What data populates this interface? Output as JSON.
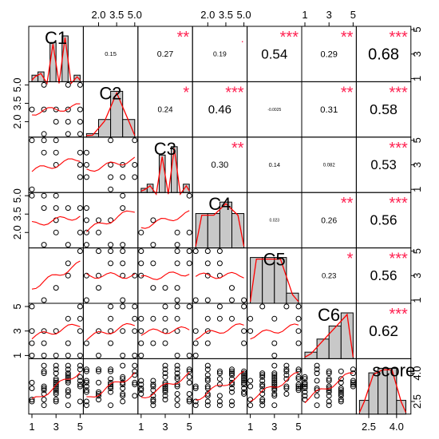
{
  "chart_data": {
    "type": "scatter",
    "title": "",
    "variables": [
      "C1",
      "C2",
      "C3",
      "C4",
      "C5",
      "C6",
      "score"
    ],
    "correlation_matrix": [
      {
        "row": "C1",
        "col": "C2",
        "r": "0.15",
        "stars": ""
      },
      {
        "row": "C1",
        "col": "C3",
        "r": "0.27",
        "stars": "**"
      },
      {
        "row": "C1",
        "col": "C4",
        "r": "0.19",
        "stars": "."
      },
      {
        "row": "C1",
        "col": "C5",
        "r": "0.54",
        "stars": "***"
      },
      {
        "row": "C1",
        "col": "C6",
        "r": "0.29",
        "stars": "**"
      },
      {
        "row": "C1",
        "col": "score",
        "r": "0.68",
        "stars": "***"
      },
      {
        "row": "C2",
        "col": "C3",
        "r": "0.24",
        "stars": "*"
      },
      {
        "row": "C2",
        "col": "C4",
        "r": "0.46",
        "stars": "***"
      },
      {
        "row": "C2",
        "col": "C5",
        "r": "-0.0025",
        "stars": ""
      },
      {
        "row": "C2",
        "col": "C6",
        "r": "0.31",
        "stars": "**"
      },
      {
        "row": "C2",
        "col": "score",
        "r": "0.58",
        "stars": "***"
      },
      {
        "row": "C3",
        "col": "C4",
        "r": "0.30",
        "stars": "**"
      },
      {
        "row": "C3",
        "col": "C5",
        "r": "0.14",
        "stars": ""
      },
      {
        "row": "C3",
        "col": "C6",
        "r": "0.082",
        "stars": ""
      },
      {
        "row": "C3",
        "col": "score",
        "r": "0.53",
        "stars": "***"
      },
      {
        "row": "C4",
        "col": "C5",
        "r": "0.023",
        "stars": ""
      },
      {
        "row": "C4",
        "col": "C6",
        "r": "0.26",
        "stars": "**"
      },
      {
        "row": "C4",
        "col": "score",
        "r": "0.56",
        "stars": "***"
      },
      {
        "row": "C5",
        "col": "C6",
        "r": "0.23",
        "stars": "*"
      },
      {
        "row": "C5",
        "col": "score",
        "r": "0.56",
        "stars": "***"
      },
      {
        "row": "C6",
        "col": "score",
        "r": "0.62",
        "stars": "***"
      }
    ],
    "histograms": [
      {
        "variable": "C1",
        "bins": [
          1,
          1.5,
          2,
          2.5,
          3,
          3.5,
          4,
          4.5,
          5
        ],
        "counts": [
          2,
          3,
          0,
          12,
          0,
          14,
          0,
          2
        ]
      },
      {
        "variable": "C2",
        "bins": [
          1,
          2,
          3,
          4,
          5
        ],
        "counts": [
          1,
          5,
          13,
          5
        ]
      },
      {
        "variable": "C3",
        "bins": [
          1,
          1.5,
          2,
          2.5,
          3,
          3.5,
          4,
          4.5,
          5
        ],
        "counts": [
          1,
          2,
          0,
          9,
          0,
          11,
          0,
          2
        ]
      },
      {
        "variable": "C4",
        "bins": [
          1,
          2,
          3,
          4,
          5
        ],
        "counts": [
          6,
          6,
          8,
          6
        ]
      },
      {
        "variable": "C5",
        "bins": [
          1,
          2,
          3,
          4,
          5
        ],
        "counts": [
          9,
          9,
          9,
          2
        ]
      },
      {
        "variable": "C6",
        "bins": [
          1,
          2,
          3,
          4,
          5
        ],
        "counts": [
          1,
          3,
          5,
          7
        ]
      },
      {
        "variable": "score",
        "bins": [
          2.0,
          2.5,
          3.0,
          3.5,
          4.0,
          4.5
        ],
        "counts": [
          3,
          9,
          10,
          10,
          3
        ]
      }
    ],
    "axes": {
      "top": [
        {
          "column": "C2",
          "ticks": [
            "2.0",
            "3.5",
            "5.0"
          ]
        },
        {
          "column": "C4",
          "ticks": [
            "2.0",
            "3.5",
            "5.0"
          ]
        },
        {
          "column": "C6",
          "ticks": [
            "1",
            "3",
            "5"
          ]
        }
      ],
      "bottom": [
        {
          "column": "C1",
          "ticks": [
            "1",
            "3",
            "5"
          ]
        },
        {
          "column": "C3",
          "ticks": [
            "1",
            "3",
            "5"
          ]
        },
        {
          "column": "C5",
          "ticks": [
            "1",
            "3",
            "5"
          ]
        },
        {
          "column": "score",
          "ticks": [
            "2.5",
            "4.0"
          ]
        }
      ],
      "left": [
        {
          "row": "C2",
          "ticks": [
            "2.0",
            "3.5",
            "5.0"
          ]
        },
        {
          "row": "C4",
          "ticks": [
            "2.0",
            "3.5",
            "5.0"
          ]
        },
        {
          "row": "C6",
          "ticks": [
            "1",
            "3",
            "5"
          ]
        }
      ],
      "right": [
        {
          "row": "C1",
          "ticks": [
            "1",
            "3",
            "5"
          ]
        },
        {
          "row": "C3",
          "ticks": [
            "1",
            "3",
            "5"
          ]
        },
        {
          "row": "C5",
          "ticks": [
            "1",
            "3",
            "5"
          ]
        },
        {
          "row": "score",
          "ticks": [
            "2.5",
            "4.0"
          ]
        }
      ]
    },
    "ranges": {
      "C1": [
        1,
        5
      ],
      "C2": [
        1,
        5
      ],
      "C3": [
        1,
        5
      ],
      "C4": [
        1,
        5
      ],
      "C5": [
        1,
        5
      ],
      "C6": [
        1,
        5
      ],
      "score": [
        2.0,
        4.6
      ]
    },
    "level_values": [
      1,
      2,
      3,
      4,
      5
    ],
    "score_values": [
      2.3,
      2.5,
      2.6,
      2.8,
      2.9,
      3.0,
      3.1,
      3.2,
      3.3,
      3.4,
      3.5,
      3.6,
      3.7,
      3.8,
      3.9,
      4.0,
      4.1,
      4.2,
      4.4
    ],
    "smoother_color": "#ff0000",
    "bar_fill": "#c8c8c8",
    "star_color": "#ff1f4f",
    "grid": false,
    "legend": "none"
  }
}
